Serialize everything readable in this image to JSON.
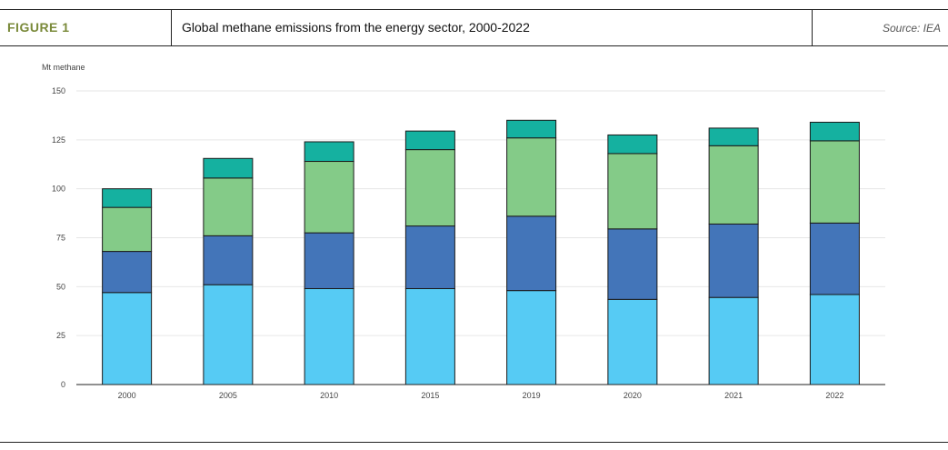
{
  "header": {
    "figure_label": "FIGURE 1",
    "title": "Global methane emissions from the energy sector, 2000-2022",
    "source": "Source: IEA"
  },
  "colors": {
    "figure_label": "#7a8a3a",
    "series": [
      "#56cbf4",
      "#4375b9",
      "#84cb88",
      "#15b1a0"
    ]
  },
  "chart_data": {
    "type": "bar",
    "stacked": true,
    "title": "Global methane emissions from the energy sector, 2000-2022",
    "ylabel": "Mt methane",
    "xlabel": "",
    "ylim": [
      0,
      150
    ],
    "yticks": [
      0,
      25,
      50,
      75,
      100,
      125,
      150
    ],
    "grid": true,
    "legend": "none",
    "categories": [
      "2000",
      "2005",
      "2010",
      "2015",
      "2019",
      "2020",
      "2021",
      "2022"
    ],
    "series": [
      {
        "values": [
          47,
          51,
          49,
          49,
          48,
          43.5,
          44.5,
          46
        ]
      },
      {
        "values": [
          21,
          25,
          28.5,
          32,
          38,
          36,
          37.5,
          36.5
        ]
      },
      {
        "values": [
          22.5,
          29.5,
          36.5,
          39,
          40,
          38.5,
          40,
          42
        ]
      },
      {
        "values": [
          9.5,
          10,
          10,
          9.5,
          9,
          9.5,
          9,
          9.5
        ]
      }
    ]
  }
}
